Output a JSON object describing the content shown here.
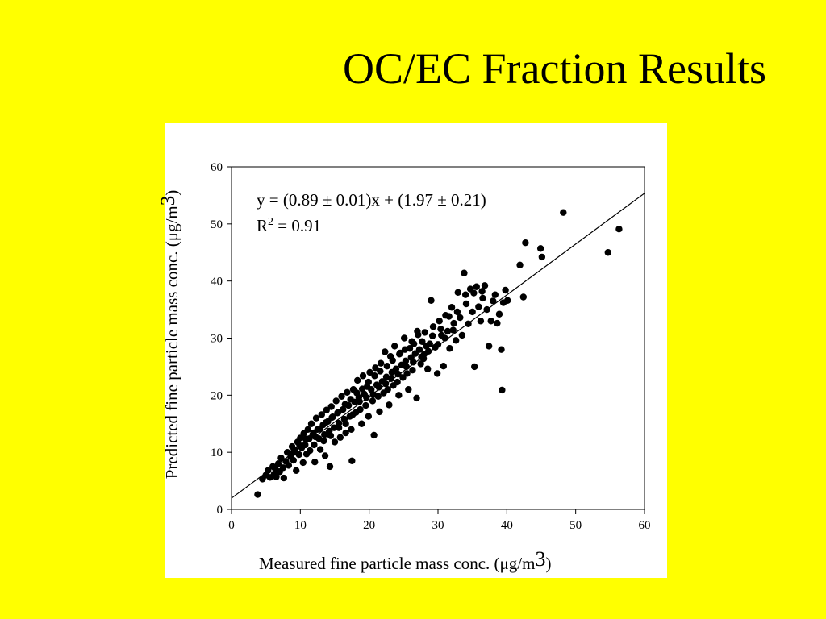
{
  "slide": {
    "title": "OC/EC Fraction Results"
  },
  "colors": {
    "background": "#ffff00",
    "panel": "#ffffff",
    "ink": "#000000"
  },
  "chart_data": {
    "type": "scatter",
    "title": "",
    "xlabel_prefix": "Measured fine particle mass conc. (",
    "ylabel_prefix": "Predicted fine particle mass conc. (",
    "unit_mu": "μg/m",
    "unit_power": "3",
    "unit_close": ")",
    "equation_text": "y = (0.89 ± 0.01)x + (1.97 ± 0.21)",
    "r2_prefix": "R",
    "r2_power": "2",
    "r2_value": " = 0.91",
    "xlim": [
      0,
      60
    ],
    "ylim": [
      0,
      60
    ],
    "xticks": [
      0,
      10,
      20,
      30,
      40,
      50,
      60
    ],
    "yticks": [
      0,
      10,
      20,
      30,
      40,
      50,
      60
    ],
    "grid": false,
    "fit_line": {
      "slope": 0.89,
      "intercept": 1.97
    },
    "points": [
      [
        3.8,
        2.6
      ],
      [
        4.5,
        5.3
      ],
      [
        5.0,
        6.0
      ],
      [
        5.3,
        6.8
      ],
      [
        5.6,
        5.6
      ],
      [
        6.0,
        7.5
      ],
      [
        6.2,
        6.2
      ],
      [
        6.5,
        5.7
      ],
      [
        6.8,
        8.0
      ],
      [
        7.0,
        6.6
      ],
      [
        7.2,
        9.0
      ],
      [
        7.5,
        7.3
      ],
      [
        7.6,
        5.5
      ],
      [
        7.9,
        8.4
      ],
      [
        8.1,
        10.0
      ],
      [
        8.3,
        7.7
      ],
      [
        8.6,
        9.2
      ],
      [
        8.8,
        11.0
      ],
      [
        9.0,
        8.6
      ],
      [
        9.2,
        10.4
      ],
      [
        9.4,
        6.8
      ],
      [
        9.6,
        11.8
      ],
      [
        9.8,
        9.6
      ],
      [
        10.0,
        12.5
      ],
      [
        10.2,
        10.8
      ],
      [
        10.4,
        8.2
      ],
      [
        10.5,
        13.3
      ],
      [
        10.7,
        11.3
      ],
      [
        10.9,
        9.7
      ],
      [
        11.1,
        14.0
      ],
      [
        11.3,
        12.4
      ],
      [
        11.4,
        10.3
      ],
      [
        11.6,
        15.0
      ],
      [
        11.8,
        13.1
      ],
      [
        12.0,
        11.3
      ],
      [
        12.1,
        8.3
      ],
      [
        12.3,
        16.0
      ],
      [
        12.5,
        14.0
      ],
      [
        12.7,
        12.4
      ],
      [
        12.9,
        10.5
      ],
      [
        13.1,
        16.6
      ],
      [
        13.3,
        14.8
      ],
      [
        13.5,
        13.1
      ],
      [
        13.6,
        9.4
      ],
      [
        13.8,
        17.4
      ],
      [
        14.0,
        15.4
      ],
      [
        14.2,
        13.7
      ],
      [
        14.3,
        7.5
      ],
      [
        14.5,
        18.0
      ],
      [
        14.7,
        16.2
      ],
      [
        14.9,
        14.3
      ],
      [
        15.0,
        11.8
      ],
      [
        15.2,
        19.0
      ],
      [
        15.4,
        16.9
      ],
      [
        15.6,
        15.1
      ],
      [
        15.8,
        12.6
      ],
      [
        16.0,
        19.8
      ],
      [
        16.2,
        17.5
      ],
      [
        16.4,
        15.8
      ],
      [
        16.6,
        13.4
      ],
      [
        16.8,
        20.5
      ],
      [
        17.0,
        18.2
      ],
      [
        17.2,
        16.3
      ],
      [
        17.4,
        14.0
      ],
      [
        17.5,
        8.5
      ],
      [
        17.7,
        21.0
      ],
      [
        17.9,
        18.8
      ],
      [
        18.1,
        17.0
      ],
      [
        18.3,
        22.6
      ],
      [
        18.5,
        19.6
      ],
      [
        18.7,
        17.5
      ],
      [
        18.9,
        15.0
      ],
      [
        19.1,
        23.4
      ],
      [
        19.3,
        20.2
      ],
      [
        19.5,
        18.2
      ],
      [
        19.7,
        21.5
      ],
      [
        19.9,
        16.3
      ],
      [
        20.1,
        24.0
      ],
      [
        20.3,
        21.0
      ],
      [
        20.5,
        19.0
      ],
      [
        20.7,
        13.0
      ],
      [
        20.9,
        24.8
      ],
      [
        21.1,
        21.8
      ],
      [
        21.3,
        19.8
      ],
      [
        21.5,
        17.1
      ],
      [
        21.7,
        25.6
      ],
      [
        21.9,
        22.4
      ],
      [
        22.1,
        20.4
      ],
      [
        22.3,
        27.6
      ],
      [
        22.5,
        23.2
      ],
      [
        22.7,
        21.0
      ],
      [
        22.9,
        18.3
      ],
      [
        23.1,
        26.8
      ],
      [
        23.3,
        24.0
      ],
      [
        23.5,
        21.7
      ],
      [
        23.7,
        28.6
      ],
      [
        23.9,
        24.6
      ],
      [
        24.1,
        22.3
      ],
      [
        24.3,
        20.0
      ],
      [
        24.5,
        27.4
      ],
      [
        24.7,
        25.3
      ],
      [
        24.9,
        23.1
      ],
      [
        25.1,
        30.0
      ],
      [
        25.3,
        26.0
      ],
      [
        25.5,
        23.8
      ],
      [
        25.7,
        21.0
      ],
      [
        25.9,
        28.2
      ],
      [
        26.1,
        26.6
      ],
      [
        26.3,
        24.4
      ],
      [
        26.5,
        29.0
      ],
      [
        26.7,
        27.3
      ],
      [
        26.9,
        19.5
      ],
      [
        27.1,
        30.6
      ],
      [
        27.3,
        28.0
      ],
      [
        27.5,
        25.5
      ],
      [
        27.7,
        29.4
      ],
      [
        27.9,
        26.4
      ],
      [
        28.1,
        31.0
      ],
      [
        28.3,
        28.6
      ],
      [
        28.5,
        24.6
      ],
      [
        28.8,
        29.0
      ],
      [
        29.0,
        36.6
      ],
      [
        29.3,
        32.0
      ],
      [
        29.6,
        28.4
      ],
      [
        29.9,
        23.8
      ],
      [
        30.2,
        33.0
      ],
      [
        30.5,
        30.5
      ],
      [
        30.8,
        25.1
      ],
      [
        31.1,
        34.0
      ],
      [
        31.4,
        31.2
      ],
      [
        31.7,
        28.2
      ],
      [
        32.0,
        35.4
      ],
      [
        32.3,
        32.6
      ],
      [
        32.6,
        29.6
      ],
      [
        32.9,
        38.0
      ],
      [
        33.2,
        33.6
      ],
      [
        33.5,
        30.5
      ],
      [
        33.8,
        41.4
      ],
      [
        34.1,
        36.0
      ],
      [
        34.4,
        32.5
      ],
      [
        34.7,
        38.6
      ],
      [
        35.0,
        34.6
      ],
      [
        35.3,
        25.0
      ],
      [
        35.6,
        39.0
      ],
      [
        35.9,
        35.5
      ],
      [
        36.2,
        33.0
      ],
      [
        36.5,
        37.0
      ],
      [
        36.8,
        39.2
      ],
      [
        37.1,
        35.0
      ],
      [
        37.4,
        28.6
      ],
      [
        37.7,
        33.0
      ],
      [
        38.0,
        36.5
      ],
      [
        38.3,
        37.6
      ],
      [
        38.6,
        32.6
      ],
      [
        38.9,
        34.2
      ],
      [
        39.2,
        28.0
      ],
      [
        39.5,
        36.2
      ],
      [
        39.8,
        38.4
      ],
      [
        40.1,
        36.6
      ],
      [
        39.3,
        20.9
      ],
      [
        41.9,
        42.8
      ],
      [
        42.4,
        37.2
      ],
      [
        42.7,
        46.7
      ],
      [
        44.9,
        45.7
      ],
      [
        45.1,
        44.2
      ],
      [
        48.2,
        52.0
      ],
      [
        54.7,
        45.0
      ],
      [
        56.3,
        49.1
      ],
      [
        6.4,
        7.0
      ],
      [
        8.9,
        9.9
      ],
      [
        9.9,
        11.2
      ],
      [
        10.8,
        12.3
      ],
      [
        11.9,
        13.4
      ],
      [
        12.8,
        14.1
      ],
      [
        13.7,
        15.2
      ],
      [
        14.6,
        16.1
      ],
      [
        15.5,
        17.0
      ],
      [
        16.5,
        18.4
      ],
      [
        17.3,
        19.3
      ],
      [
        18.2,
        20.4
      ],
      [
        19.0,
        21.1
      ],
      [
        19.9,
        22.3
      ],
      [
        20.8,
        23.4
      ],
      [
        21.6,
        24.2
      ],
      [
        22.6,
        25.1
      ],
      [
        23.4,
        26.1
      ],
      [
        24.4,
        27.2
      ],
      [
        25.2,
        28.0
      ],
      [
        26.2,
        29.4
      ],
      [
        27.0,
        31.2
      ],
      [
        28.0,
        27.2
      ],
      [
        29.2,
        30.4
      ],
      [
        30.4,
        31.6
      ],
      [
        31.6,
        33.8
      ],
      [
        32.8,
        34.6
      ],
      [
        34.0,
        37.6
      ],
      [
        35.2,
        37.9
      ],
      [
        36.4,
        38.2
      ],
      [
        12.2,
        12.7
      ],
      [
        13.4,
        12.0
      ],
      [
        14.4,
        12.9
      ],
      [
        15.6,
        14.3
      ],
      [
        16.6,
        15.0
      ],
      [
        17.6,
        16.6
      ],
      [
        18.6,
        18.9
      ],
      [
        19.6,
        19.6
      ],
      [
        20.6,
        20.1
      ],
      [
        21.4,
        21.4
      ],
      [
        22.4,
        22.0
      ],
      [
        23.2,
        22.9
      ],
      [
        24.2,
        23.7
      ],
      [
        25.4,
        25.0
      ],
      [
        26.4,
        25.8
      ],
      [
        27.6,
        26.7
      ],
      [
        28.6,
        27.7
      ],
      [
        30.0,
        28.9
      ],
      [
        31.0,
        30.0
      ],
      [
        32.2,
        31.4
      ]
    ]
  }
}
